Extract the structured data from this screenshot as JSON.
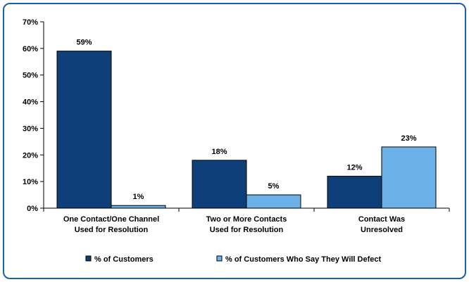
{
  "chart_data": {
    "type": "bar",
    "title": "",
    "xlabel": "",
    "ylabel": "",
    "ylim": [
      0,
      70
    ],
    "yticks": [
      0,
      10,
      20,
      30,
      40,
      50,
      60,
      70
    ],
    "ytick_labels": [
      "0%",
      "10%",
      "20%",
      "30%",
      "40%",
      "50%",
      "60%",
      "70%"
    ],
    "categories": [
      [
        "One Contact/One Channel",
        "Used for Resolution"
      ],
      [
        "Two or More Contacts",
        "Used for Resolution"
      ],
      [
        "Contact Was",
        "Unresolved"
      ]
    ],
    "series": [
      {
        "name": "% of Customers",
        "color": "#0f3f78",
        "values": [
          59,
          18,
          12
        ],
        "labels": [
          "59%",
          "18%",
          "12%"
        ]
      },
      {
        "name": "% of Customers Who Say They Will Defect",
        "color": "#6cb1e8",
        "values": [
          1,
          5,
          23
        ],
        "labels": [
          "1%",
          "5%",
          "23%"
        ]
      }
    ],
    "legend_position": "bottom",
    "grid": false
  },
  "colors": {
    "frame_border": "#1f5fa8",
    "axis": "#000000"
  }
}
